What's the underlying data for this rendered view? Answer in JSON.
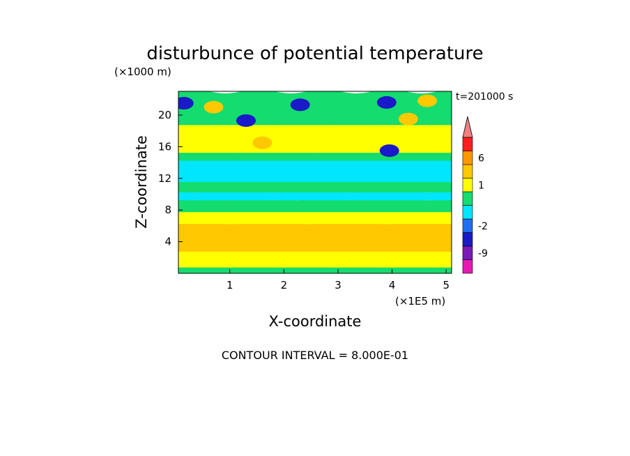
{
  "chart_data": {
    "type": "heatmap",
    "title": "disturbunce of potential temperature",
    "xlabel": "X-coordinate",
    "ylabel": "Z-coordinate",
    "x_unit": "(×1E5 m)",
    "y_unit": "(×1000 m)",
    "time_label": "t=201000 s",
    "footer": "CONTOUR INTERVAL = 8.000E-01",
    "xlim": [
      0.05,
      5.1
    ],
    "ylim": [
      0,
      23
    ],
    "x_ticks": [
      "1",
      "2",
      "3",
      "4",
      "5"
    ],
    "y_ticks": [
      "4",
      "8",
      "12",
      "16",
      "20"
    ],
    "colorbar": {
      "levels": [
        {
          "label": "",
          "color": "#e619b3"
        },
        {
          "label": "-9",
          "color": "#7a1ab8"
        },
        {
          "label": "",
          "color": "#1a1ac8"
        },
        {
          "label": "-2",
          "color": "#1f6ef0"
        },
        {
          "label": "",
          "color": "#00e6ff"
        },
        {
          "label": "",
          "color": "#14dc6e"
        },
        {
          "label": "1",
          "color": "#ffff00"
        },
        {
          "label": "",
          "color": "#ffc800"
        },
        {
          "label": "6",
          "color": "#ff9600"
        },
        {
          "label": "",
          "color": "#ff1e1e"
        },
        {
          "label": "",
          "color": "#f08080"
        }
      ]
    },
    "field": {
      "z_bands": [
        {
          "z": [
            0,
            1
          ],
          "level": "green"
        },
        {
          "z": [
            1,
            3
          ],
          "level": "yellow"
        },
        {
          "z": [
            3,
            6.5
          ],
          "level": "orange"
        },
        {
          "z": [
            6.5,
            8
          ],
          "level": "yellow"
        },
        {
          "z": [
            8,
            9.5
          ],
          "level": "green"
        },
        {
          "z": [
            9.5,
            10.5
          ],
          "level": "cyan"
        },
        {
          "z": [
            10.5,
            11.8
          ],
          "level": "green"
        },
        {
          "z": [
            11.8,
            14.5
          ],
          "level": "cyan"
        },
        {
          "z": [
            14.5,
            15.5
          ],
          "level": "green"
        },
        {
          "z": [
            15.5,
            19
          ],
          "level": "yellow"
        },
        {
          "z": [
            19,
            23
          ],
          "level": "green"
        }
      ],
      "features": [
        {
          "x": 0.15,
          "z": 21.5,
          "level": "blue"
        },
        {
          "x": 1.3,
          "z": 19.3,
          "level": "blue"
        },
        {
          "x": 2.3,
          "z": 21.3,
          "level": "blue"
        },
        {
          "x": 3.9,
          "z": 21.6,
          "level": "blue"
        },
        {
          "x": 3.95,
          "z": 15.5,
          "level": "blue"
        },
        {
          "x": 4.65,
          "z": 21.8,
          "level": "orange"
        },
        {
          "x": 1.6,
          "z": 16.5,
          "level": "orange"
        },
        {
          "x": 0.7,
          "z": 21,
          "level": "orange"
        },
        {
          "x": 4.3,
          "z": 19.5,
          "level": "orange"
        }
      ]
    }
  }
}
